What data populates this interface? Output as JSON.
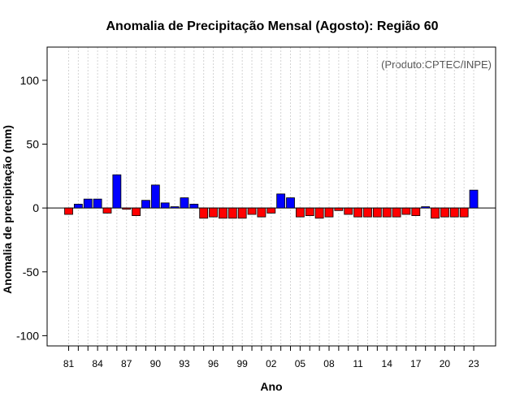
{
  "chart_data": {
    "type": "bar",
    "title": "Anomalia de Precipitação Mensal (Agosto): Região 60",
    "xlabel": "Ano",
    "ylabel": "Anomalia de precipitação (mm)",
    "credit": "(Produto:CPTEC/INPE)",
    "ylim": [
      -108,
      126
    ],
    "yticks": [
      -100,
      -50,
      0,
      50,
      100
    ],
    "ytick_labels": [
      "-100",
      "-50",
      "0",
      "50",
      "100"
    ],
    "years": [
      1981,
      1982,
      1983,
      1984,
      1985,
      1986,
      1987,
      1988,
      1989,
      1990,
      1991,
      1992,
      1993,
      1994,
      1995,
      1996,
      1997,
      1998,
      1999,
      2000,
      2001,
      2002,
      2003,
      2004,
      2005,
      2006,
      2007,
      2008,
      2009,
      2010,
      2011,
      2012,
      2013,
      2014,
      2015,
      2016,
      2017,
      2018,
      2019,
      2020,
      2021,
      2022,
      2023
    ],
    "values": [
      -5,
      3,
      7,
      7,
      -4,
      26,
      -1,
      -6,
      6,
      18,
      4,
      1,
      8,
      3,
      -8,
      -7,
      -8,
      -8,
      -8,
      -5,
      -7,
      -4,
      11,
      8,
      -7,
      -6,
      -8,
      -7,
      -2,
      -5,
      -7,
      -7,
      -7,
      -7,
      -7,
      -5,
      -6,
      1,
      -8,
      -7,
      -7,
      -7,
      14
    ],
    "xtick_labels": [
      "81",
      "84",
      "87",
      "90",
      "93",
      "96",
      "99",
      "02",
      "05",
      "08",
      "11",
      "14",
      "17",
      "20",
      "23"
    ],
    "xtick_years": [
      1981,
      1984,
      1987,
      1990,
      1993,
      1996,
      1999,
      2002,
      2005,
      2008,
      2011,
      2014,
      2017,
      2020,
      2023
    ],
    "colors": {
      "positive": "#0000ff",
      "negative": "#ff0000",
      "outline": "#000000",
      "grid": "#d3d3d3"
    },
    "grid": true,
    "legend": "none"
  }
}
